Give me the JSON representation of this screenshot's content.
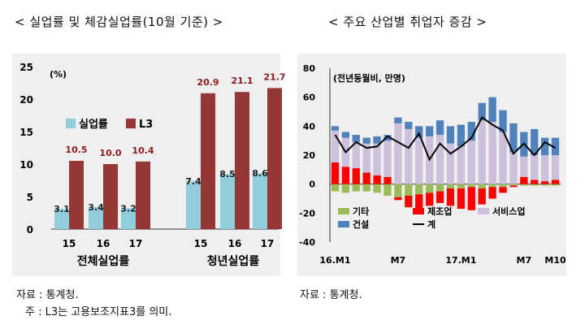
{
  "left": {
    "title": "< 실업률 및 체감실업률(10월 기준) >",
    "source": "자료 : 통계청.",
    "note": "주 : L3는 고용보조지표3를 의미.",
    "chart_data": {
      "type": "bar",
      "unit_label": "(%)",
      "ylim": [
        0,
        25
      ],
      "yticks": [
        "0",
        "5",
        "10",
        "15",
        "20",
        "25"
      ],
      "groups": [
        {
          "name": "전체실업률",
          "categories": [
            "15",
            "16",
            "17"
          ]
        },
        {
          "name": "청년실업률",
          "categories": [
            "15",
            "16",
            "17"
          ]
        }
      ],
      "series": [
        {
          "name": "실업률",
          "color": "#92cddc",
          "values": [
            3.1,
            3.4,
            3.2,
            7.4,
            8.5,
            8.6
          ],
          "labels": [
            "3.1",
            "3.4",
            "3.2",
            "7.4",
            "8.5",
            "8.6"
          ]
        },
        {
          "name": "L3",
          "color": "#953735",
          "values": [
            10.5,
            10.0,
            10.4,
            20.9,
            21.1,
            21.7
          ],
          "labels": [
            "10.5",
            "10.0",
            "10.4",
            "20.9",
            "21.1",
            "21.7"
          ]
        }
      ],
      "legend_position": "left-middle",
      "grid": false
    }
  },
  "right": {
    "title": "< 주요 산업별 취업자 증감 >",
    "source": "자료 : 통계청.",
    "chart_data": {
      "type": "bar",
      "stacked": true,
      "unit_label": "(전년동월비, 만명)",
      "ylim": [
        -40,
        80
      ],
      "yticks": [
        "-40",
        "-20",
        "0",
        "20",
        "40",
        "60",
        "80"
      ],
      "xtick_labels": [
        {
          "index": 0,
          "label": "16.M1"
        },
        {
          "index": 6,
          "label": "M7"
        },
        {
          "index": 12,
          "label": "17.M1"
        },
        {
          "index": 18,
          "label": "M7"
        },
        {
          "index": 21,
          "label": "M10"
        }
      ],
      "series": [
        {
          "name": "기타",
          "color": "#9bbb59",
          "values": [
            -5,
            -6,
            -5,
            -5,
            -6,
            -8,
            -9,
            -8,
            -7,
            -6,
            -5,
            -3,
            -3,
            -2,
            -3,
            -2,
            -2,
            -1,
            -1,
            -1,
            -1,
            -1
          ]
        },
        {
          "name": "제조업",
          "color": "#ff0000",
          "values": [
            15,
            12,
            11,
            8,
            6,
            5,
            -2,
            -8,
            -10,
            -9,
            -8,
            -12,
            -14,
            -16,
            -11,
            -8,
            -4,
            -1,
            5,
            3,
            2,
            3
          ]
        },
        {
          "name": "서비스업",
          "color": "#ccc0da",
          "values": [
            22,
            20,
            18,
            20,
            22,
            25,
            42,
            38,
            32,
            33,
            34,
            28,
            26,
            30,
            44,
            43,
            36,
            22,
            14,
            17,
            18,
            17
          ]
        },
        {
          "name": "건설",
          "color": "#4f81bd",
          "values": [
            3,
            4,
            5,
            4,
            5,
            4,
            4,
            5,
            8,
            7,
            10,
            12,
            15,
            13,
            12,
            17,
            15,
            20,
            17,
            18,
            12,
            12
          ]
        }
      ],
      "total": {
        "name": "계",
        "color": "#000000",
        "values": [
          34,
          22,
          29,
          25,
          26,
          33,
          29,
          25,
          35,
          17,
          28,
          21,
          26,
          32,
          46,
          41,
          37,
          21,
          28,
          20,
          29,
          25
        ]
      },
      "legend_position": "bottom-left",
      "grid": false
    }
  }
}
